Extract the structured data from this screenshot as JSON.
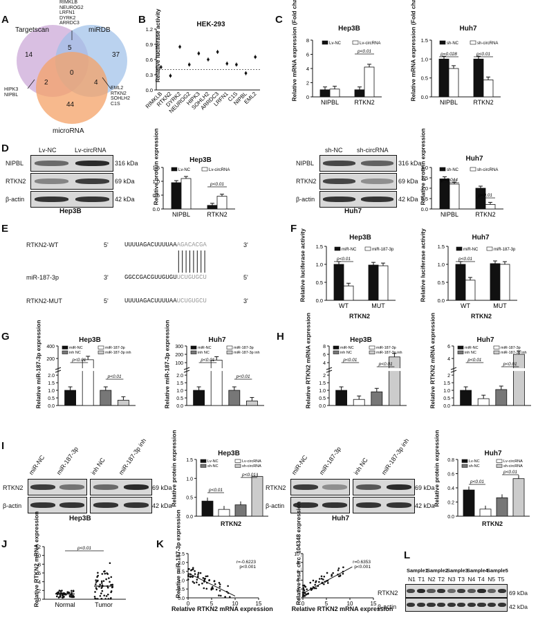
{
  "labels": {
    "A": "A",
    "B": "B",
    "C": "C",
    "D": "D",
    "E": "E",
    "F": "F",
    "G": "G",
    "H": "H",
    "I": "I",
    "J": "J",
    "K": "K",
    "L": "L"
  },
  "venn": {
    "set1": "Targetscan",
    "set2": "miRDB",
    "set3": "microRNA",
    "n1": "14",
    "n2": "37",
    "n3": "44",
    "n12": "5",
    "n13": "2",
    "n23": "4",
    "n123": "0",
    "genes12": [
      "RIMKLB",
      "NEUROG2",
      "LRFN1",
      "DYRK2",
      "ARRDC3"
    ],
    "genes13": [
      "HIPK3",
      "NIPBL"
    ],
    "genes23": [
      "EML2",
      "RTKN2",
      "SOHLH2",
      "C1S"
    ],
    "colors": {
      "set1": "#c9a4d6",
      "set2": "#9dbfe8",
      "set3": "#f4a267"
    }
  },
  "panelB": {
    "title": "HEK-293",
    "ylabel": "Relative luciferase activity",
    "chart_data": {
      "type": "scatter",
      "categories": [
        "RIMKLB",
        "RTKN2",
        "DYRK2",
        "NEUROG2",
        "HIPK3",
        "SOHLH2",
        "ARRDC3",
        "LRFN1",
        "C1S",
        "NIPBL",
        "EML2"
      ],
      "values": [
        0.45,
        0.28,
        0.85,
        0.5,
        0.72,
        0.6,
        0.75,
        0.52,
        0.5,
        0.33,
        0.65
      ],
      "ylim": [
        0,
        1.2
      ],
      "yticks": [
        "0.0",
        "0.3",
        "0.6",
        "0.9",
        "1.2"
      ],
      "threshold": 0.4
    }
  },
  "panelC": {
    "ylabel": "Relative mRNA expression (Fold change)",
    "hep3b": {
      "title": "Hep3B",
      "legend": [
        "Lv-NC",
        "Lv-circRNA"
      ],
      "p": "p<0.01",
      "chart_data": {
        "type": "bar",
        "categories": [
          "NIPBL",
          "RTKN2"
        ],
        "series": [
          {
            "name": "Lv-NC",
            "values": [
              1.0,
              1.0
            ]
          },
          {
            "name": "Lv-circRNA",
            "values": [
              1.1,
              4.2
            ]
          }
        ],
        "ylim": [
          0,
          8
        ],
        "yticks": [
          "0",
          "2",
          "4",
          "6",
          "8"
        ]
      }
    },
    "huh7": {
      "title": "Huh7",
      "legend": [
        "sh-NC",
        "sh-circRNA"
      ],
      "p1": "p=0.028",
      "p2": "p<0.01",
      "chart_data": {
        "type": "bar",
        "categories": [
          "NIPBL",
          "RTKN2"
        ],
        "series": [
          {
            "name": "sh-NC",
            "values": [
              1.0,
              1.0
            ]
          },
          {
            "name": "sh-circRNA",
            "values": [
              0.75,
              0.45
            ]
          }
        ],
        "ylim": [
          0,
          1.5
        ],
        "yticks": [
          "0.0",
          "0.5",
          "1.0",
          "1.5"
        ]
      }
    }
  },
  "panelD": {
    "ylabel": "Relative protein expression",
    "hep3b": {
      "title": "Hep3B",
      "lanes": [
        "Lv-NC",
        "Lv-circRNA"
      ],
      "rows": [
        "NIPBL",
        "RTKN2",
        "β-actin"
      ],
      "kda": [
        "316 kDa",
        "69 kDa",
        "42 kDa"
      ],
      "caption": "Hep3B",
      "legend": [
        "Lv-NC",
        "Lv-circRNA"
      ],
      "p": "p<0.01",
      "chart_data": {
        "type": "bar",
        "categories": [
          "NIPBL",
          "RTKN2"
        ],
        "series": [
          {
            "name": "Lv-NC",
            "values": [
              0.95,
              0.13
            ]
          },
          {
            "name": "Lv-circRNA",
            "values": [
              1.1,
              0.46
            ]
          }
        ],
        "ylim": [
          0,
          1.5
        ],
        "yticks": [
          "0.0",
          "0.5",
          "1.0",
          "1.5"
        ]
      }
    },
    "huh7": {
      "title": "Huh7",
      "lanes": [
        "sh-NC",
        "sh-circRNA"
      ],
      "rows": [
        "NIPBL",
        "RTKN2",
        "β-actin"
      ],
      "kda": [
        "316 kDa",
        "69 kDa",
        "42 kDa"
      ],
      "caption": "Huh7",
      "legend": [
        "sh-NC",
        "sh-circRNA"
      ],
      "p1": "p=0.044",
      "p2": "p<0.01",
      "chart_data": {
        "type": "bar",
        "categories": [
          "NIPBL",
          "RTKN2"
        ],
        "series": [
          {
            "name": "sh-NC",
            "values": [
              1.45,
              1.0
            ]
          },
          {
            "name": "sh-circRNA",
            "values": [
              1.2,
              0.22
            ]
          }
        ],
        "ylim": [
          0,
          2.0
        ],
        "yticks": [
          "0.0",
          "0.5",
          "1.0",
          "1.5",
          "2.0"
        ]
      }
    }
  },
  "panelE": {
    "rows": [
      {
        "name": "RTKN2-WT",
        "p5": "5'",
        "seq": "UUUUAGACUUUUAA",
        "seed": "AGACACGA",
        "p3": "3'"
      },
      {
        "name": "miR-187-3p",
        "p5": "3'",
        "seq": "GGCCGACGUUGUGU",
        "seed": "UCUGUGCU",
        "p3": "5'"
      },
      {
        "name": "RTKN2-MUT",
        "p5": "5'",
        "seq": "UUUUAGACUUUUAA",
        "seed": "UCUGUGCU",
        "p3": "3'"
      }
    ]
  },
  "panelF": {
    "ylabel": "Relative luciferase activity",
    "xlabel": "RTKN2",
    "hep3b": {
      "title": "Hep3B",
      "legend": [
        "miR-NC",
        "miR-187-3p"
      ],
      "p": "p<0.01",
      "chart_data": {
        "type": "bar",
        "categories": [
          "WT",
          "MUT"
        ],
        "series": [
          {
            "name": "miR-NC",
            "values": [
              1.0,
              0.98
            ]
          },
          {
            "name": "miR-187-3p",
            "values": [
              0.4,
              0.96
            ]
          }
        ],
        "ylim": [
          0,
          1.5
        ],
        "yticks": [
          "0.0",
          "0.5",
          "1.0",
          "1.5"
        ]
      }
    },
    "huh7": {
      "title": "Huh7",
      "legend": [
        "miR-NC",
        "miR-187-3p"
      ],
      "p": "p<0.01",
      "chart_data": {
        "type": "bar",
        "categories": [
          "WT",
          "MUT"
        ],
        "series": [
          {
            "name": "miR-NC",
            "values": [
              1.0,
              1.02
            ]
          },
          {
            "name": "miR-187-3p",
            "values": [
              0.56,
              1.0
            ]
          }
        ],
        "ylim": [
          0,
          1.5
        ],
        "yticks": [
          "0.0",
          "0.5",
          "1.0",
          "1.5"
        ]
      }
    }
  },
  "panelG": {
    "ylabel": "Relative miR-187-3p expression",
    "legend": [
      "miR-NC",
      "miR-187-3p",
      "inh NC",
      "miR-187-3p inh"
    ],
    "hep3b": {
      "title": "Hep3B",
      "p1": "p<0.01",
      "p2": "p<0.01",
      "chart_data": {
        "type": "bar",
        "categories": [
          "miR-NC",
          "miR-187-3p",
          "inh NC",
          "miR-187-3p inh"
        ],
        "values": [
          1.0,
          180,
          1.0,
          0.35
        ],
        "yticks": [
          "0.0",
          "0.5",
          "1.0",
          "1.5",
          "2.0",
          "200",
          "400"
        ]
      }
    },
    "huh7": {
      "title": "Huh7",
      "p1": "p<0.01",
      "p2": "p<0.01",
      "chart_data": {
        "type": "bar",
        "categories": [
          "miR-NC",
          "miR-187-3p",
          "inh NC",
          "miR-187-3p inh"
        ],
        "values": [
          1.0,
          130,
          1.0,
          0.3
        ],
        "yticks": [
          "0.0",
          "0.5",
          "1.0",
          "1.5",
          "2.0",
          "100",
          "200",
          "300"
        ]
      }
    }
  },
  "panelH": {
    "ylabel": "Relative RTKN2 mRNA expression",
    "legend": [
      "miR-NC",
      "miR-187-3p",
      "inh NC",
      "miR-187-3p inh"
    ],
    "hep3b": {
      "title": "Hep3B",
      "p1": "p<0.01",
      "p2": "p<0.01",
      "chart_data": {
        "type": "bar",
        "categories": [
          "miR-NC",
          "miR-187-3p",
          "inh NC",
          "miR-187-3p inh"
        ],
        "values": [
          1.0,
          0.4,
          0.9,
          4.5
        ],
        "yticks": [
          "0.0",
          "0.5",
          "1.0",
          "1.5",
          "2",
          "4",
          "6",
          "8"
        ]
      }
    },
    "huh7": {
      "title": "Huh7",
      "p1": "p<0.01",
      "p2": "p<0.01",
      "chart_data": {
        "type": "bar",
        "categories": [
          "miR-NC",
          "miR-187-3p",
          "inh NC",
          "miR-187-3p inh"
        ],
        "values": [
          1.0,
          0.45,
          1.05,
          4.0
        ],
        "yticks": [
          "0.0",
          "0.5",
          "1.0",
          "1.5",
          "2",
          "4",
          "6"
        ]
      }
    }
  },
  "panelI": {
    "ylabel": "Relative protein expression",
    "xlabel": "RTKN2",
    "lanes": [
      "miR-NC",
      "miR-187-3p",
      "inh NC",
      "miR-187-3p inh"
    ],
    "rows": [
      "RTKN2",
      "β-actin"
    ],
    "kda": [
      "69 kDa",
      "42 kDa"
    ],
    "legend": [
      "Lv-NC",
      "Lv-circRNA",
      "sh-NC",
      "sh-circRNA"
    ],
    "hep3b": {
      "title": "Hep3B",
      "caption": "Hep3B",
      "p1": "p<0.01",
      "p2": "p<0.01",
      "chart_data": {
        "type": "bar",
        "categories": [
          "miR-NC",
          "miR-187-3p",
          "inh NC",
          "miR-187-3p inh"
        ],
        "values": [
          0.4,
          0.18,
          0.3,
          1.05
        ],
        "ylim": [
          0,
          1.5
        ],
        "yticks": [
          "0.0",
          "0.5",
          "1.0",
          "1.5"
        ]
      }
    },
    "huh7": {
      "title": "Huh7",
      "caption": "Huh7",
      "p1": "p<0.01",
      "p2": "p<0.01",
      "chart_data": {
        "type": "bar",
        "categories": [
          "miR-NC",
          "miR-187-3p",
          "inh NC",
          "miR-187-3p inh"
        ],
        "values": [
          0.37,
          0.1,
          0.26,
          0.53
        ],
        "ylim": [
          0,
          0.8
        ],
        "yticks": [
          "0.0",
          "0.2",
          "0.4",
          "0.6",
          "0.8"
        ]
      }
    }
  },
  "panelJ": {
    "ylabel": "Relative RTKN2 mRNA expression",
    "p": "p<0.01",
    "chart_data": {
      "type": "scatter",
      "categories": [
        "Normal",
        "Tumor"
      ],
      "means": [
        1.2,
        3.0
      ],
      "ylim": [
        0,
        12
      ],
      "yticks": [
        "0",
        "2",
        "4",
        "6",
        "8",
        "10",
        "12"
      ]
    }
  },
  "panelK": {
    "xlabel": "Relative RTKN2 mRNA expression",
    "left": {
      "ylabel": "Relative miR-187-3p expression",
      "r": "r=-0.6223",
      "p": "p<0.001",
      "chart_data": {
        "type": "scatter",
        "xlim": [
          0,
          15
        ],
        "ylim": [
          0,
          2.5
        ],
        "xticks": [
          "0",
          "5",
          "10",
          "15"
        ],
        "yticks": [
          "0.0",
          "0.5",
          "1.0",
          "1.5",
          "2.0",
          "2.5"
        ]
      }
    },
    "right": {
      "ylabel": "Relative hsa_circ_104348 expression",
      "r": "r=0.6353",
      "p": "p<0.001",
      "chart_data": {
        "type": "scatter",
        "xlim": [
          0,
          15
        ],
        "ylim": [
          0,
          10
        ],
        "xticks": [
          "0",
          "5",
          "10",
          "15"
        ],
        "yticks": [
          "0",
          "2",
          "4",
          "6",
          "8",
          "10"
        ]
      }
    }
  },
  "panelL": {
    "samples": [
      "Sample1",
      "Sample2",
      "Sample3",
      "Sample4",
      "Sample5"
    ],
    "lanes": [
      "N1",
      "T1",
      "N2",
      "T2",
      "N3",
      "T3",
      "N4",
      "T4",
      "N5",
      "T5"
    ],
    "rows": [
      "RTKN2",
      "β-actin"
    ],
    "kda": [
      "69 kDa",
      "42 kDa"
    ]
  }
}
